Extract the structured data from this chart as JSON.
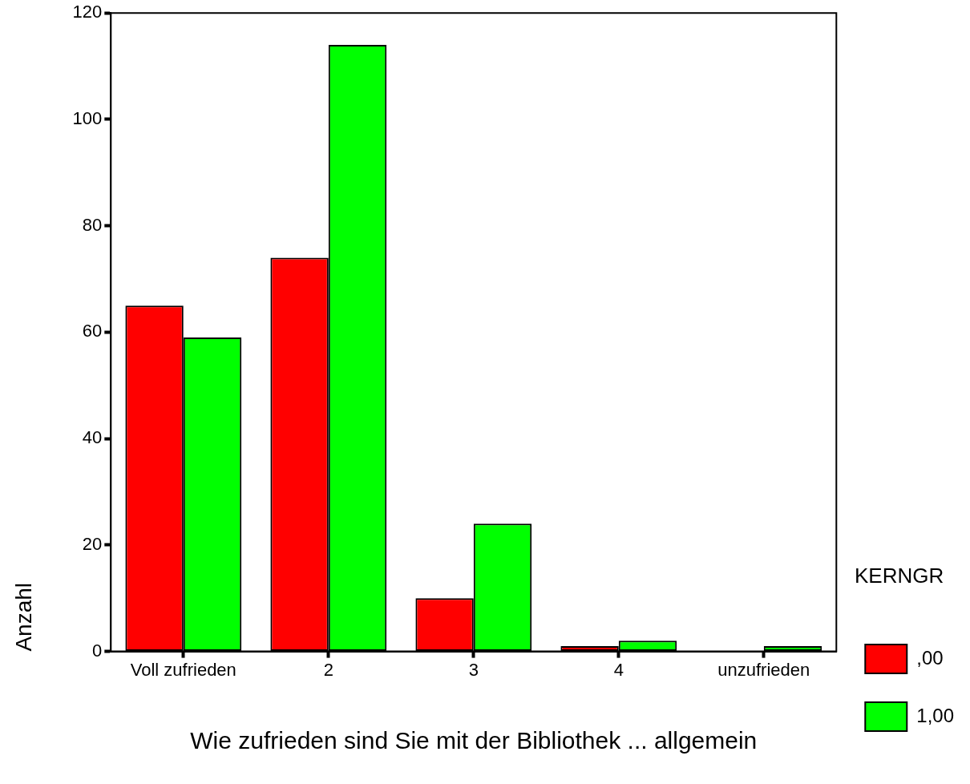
{
  "chart_data": {
    "type": "bar",
    "xlabel": "Wie zufrieden sind Sie mit der Bibliothek ... allgemein",
    "ylabel": "Anzahl",
    "legend_title": "KERNGR",
    "categories": [
      "Voll zufrieden",
      "2",
      "3",
      "4",
      "unzufrieden"
    ],
    "series": [
      {
        "name": ",00",
        "color": "#ff0000",
        "values": [
          65,
          74,
          10,
          1,
          0
        ]
      },
      {
        "name": "1,00",
        "color": "#00ff00",
        "values": [
          59,
          114,
          24,
          2,
          1
        ]
      }
    ],
    "ylim": [
      0,
      120
    ],
    "yticks": [
      0,
      20,
      40,
      60,
      80,
      100,
      120
    ],
    "grid": false,
    "legend": "right"
  }
}
